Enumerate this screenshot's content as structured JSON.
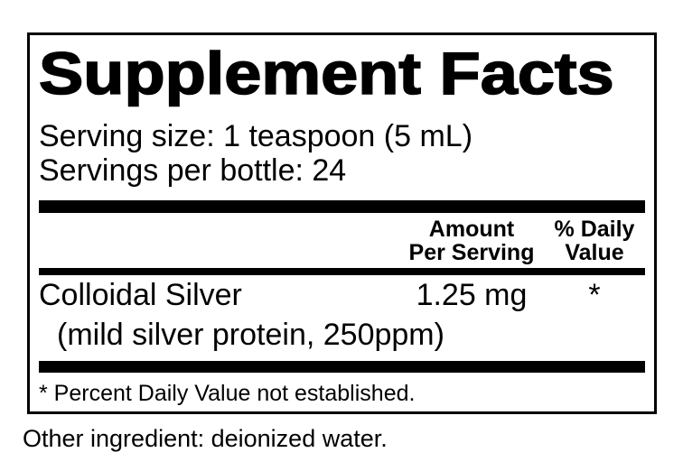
{
  "label": {
    "title": "Supplement Facts",
    "serving_size": "Serving size: 1 teaspoon (5 mL)",
    "servings_per_bottle": "Servings per bottle: 24",
    "columns": {
      "amount_line1": "Amount",
      "amount_line2": "Per Serving",
      "daily_value_line1": "% Daily",
      "daily_value_line2": "Value"
    },
    "rows": [
      {
        "name": "Colloidal Silver",
        "sub": "(mild silver protein, 250ppm)",
        "amount": "1.25 mg",
        "daily_value": "*"
      }
    ],
    "footnote": "* Percent Daily Value not established.",
    "colors": {
      "text": "#000000",
      "background": "#ffffff",
      "rule": "#000000"
    }
  },
  "other_ingredient": "Other ingredient: deionized water."
}
